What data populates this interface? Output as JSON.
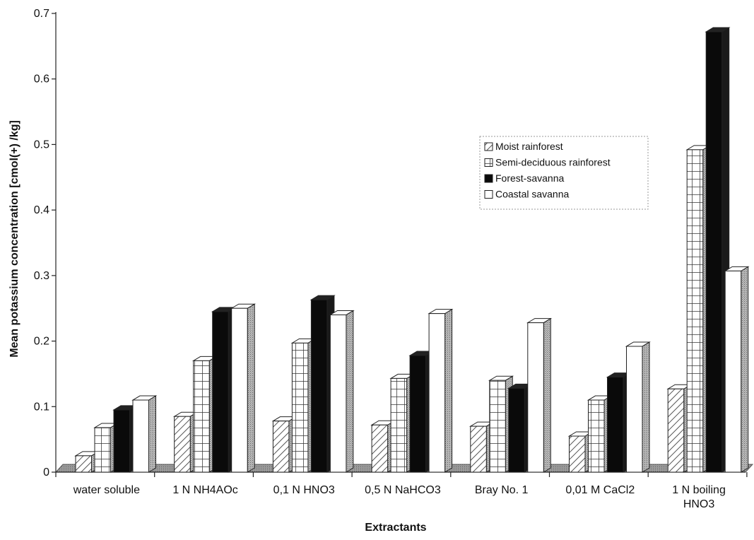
{
  "chart_data": {
    "type": "bar",
    "title": "",
    "xlabel": "Extractants",
    "ylabel": "Mean potassium concentration [cmol(+) /kg]",
    "ylim": [
      0,
      0.7
    ],
    "yticks": [
      "0",
      "0.1",
      "0.2",
      "0.3",
      "0.4",
      "0.5",
      "0.6",
      "0.7"
    ],
    "categories": [
      [
        "water soluble"
      ],
      [
        "1 N NH4AOc"
      ],
      [
        "0,1 N HNO3"
      ],
      [
        "0,5 N NaHCO3"
      ],
      [
        "Bray No. 1"
      ],
      [
        "0,01 M CaCl2"
      ],
      [
        "1 N boiling",
        "HNO3"
      ]
    ],
    "series": [
      {
        "name": "Moist rainforest",
        "pattern": "diagonal",
        "values": [
          0.025,
          0.085,
          0.078,
          0.072,
          0.07,
          0.055,
          0.127
        ]
      },
      {
        "name": "Semi-deciduous rainforest",
        "pattern": "grid",
        "values": [
          0.068,
          0.17,
          0.197,
          0.143,
          0.14,
          0.11,
          0.492
        ]
      },
      {
        "name": "Forest-savanna",
        "pattern": "solid-black",
        "values": [
          0.095,
          0.245,
          0.263,
          0.178,
          0.128,
          0.145,
          0.672
        ]
      },
      {
        "name": "Coastal savanna",
        "pattern": "white",
        "values": [
          0.11,
          0.25,
          0.24,
          0.242,
          0.228,
          0.192,
          0.307
        ]
      }
    ],
    "legend_position": "right",
    "grid": false,
    "style": "3d"
  }
}
